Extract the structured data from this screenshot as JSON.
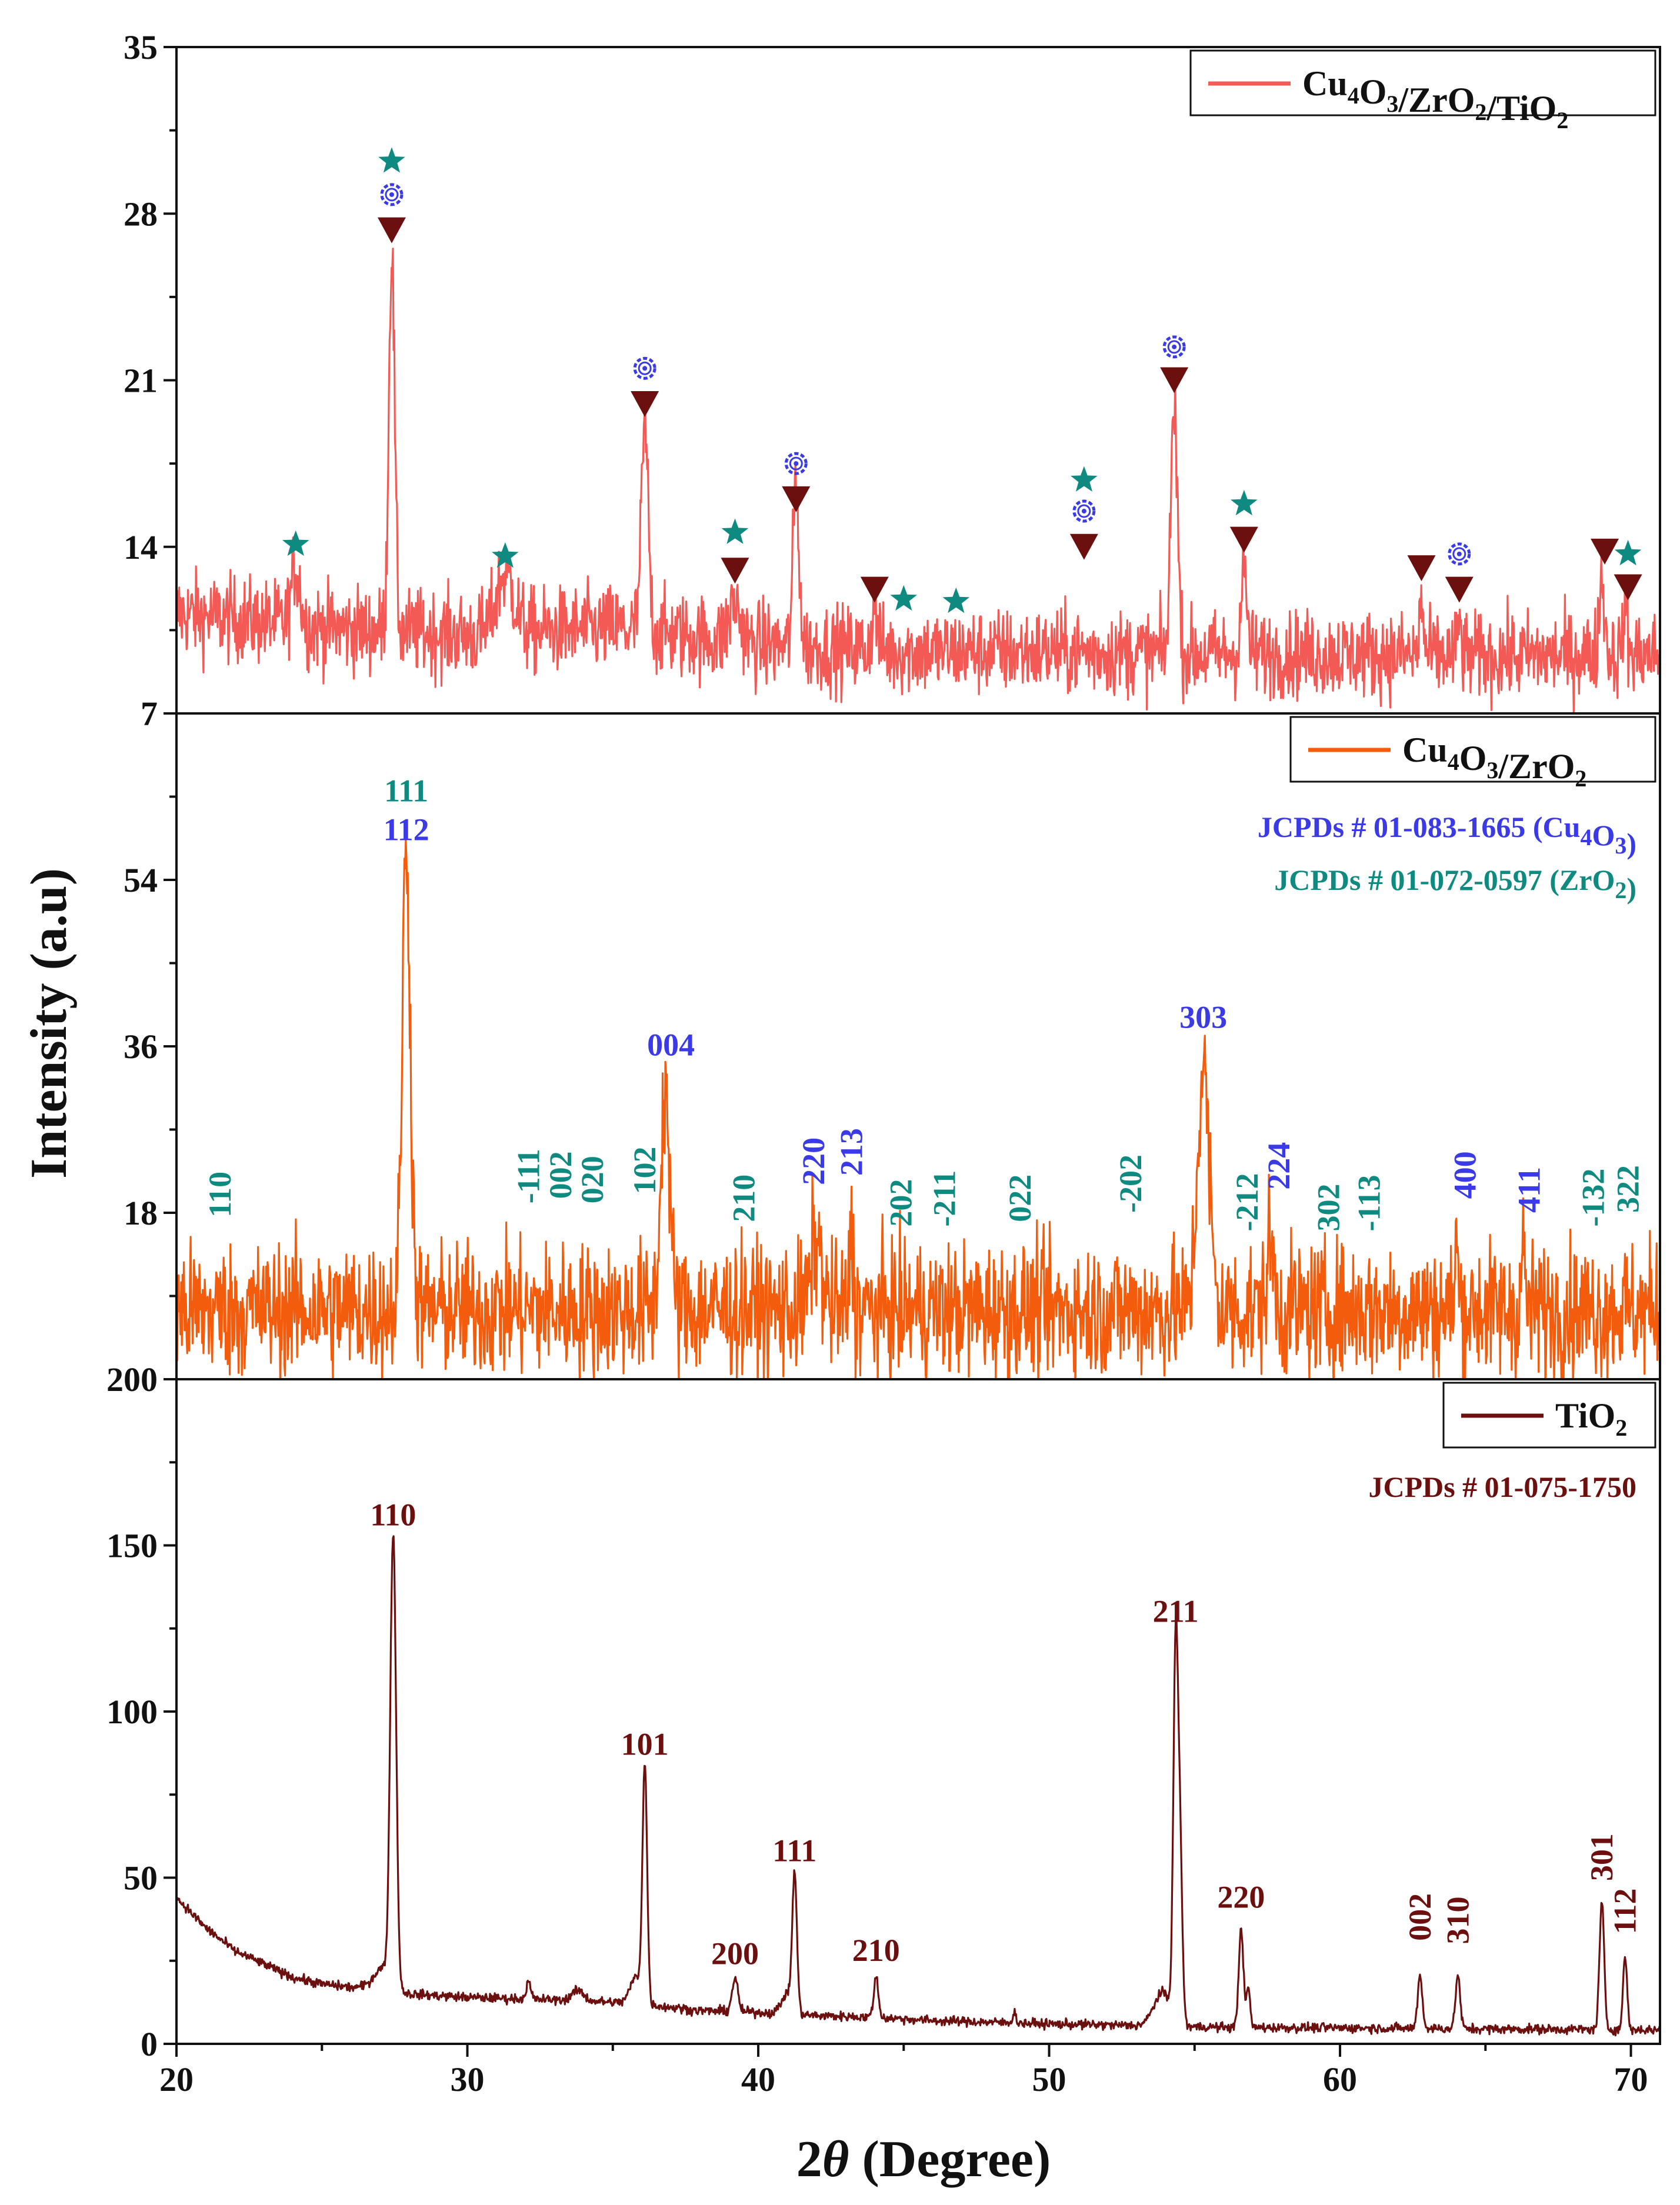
{
  "chart_data": {
    "type": "line",
    "title": "",
    "xlabel_prefix": "2",
    "xlabel_theta": "θ",
    "xlabel_suffix": " (Degree)",
    "ylabel": "Intensity (a.u)",
    "xlim": [
      20,
      71
    ],
    "x_ticks": [
      20,
      30,
      40,
      50,
      60,
      70
    ],
    "colors": {
      "composite": "#f35a55",
      "binary": "#f25c0c",
      "tio2": "#6b0f0f",
      "cu4o3_marker": "#3a3ae6",
      "zro2_marker": "#0f8a80",
      "tio2_marker": "#6b0f0f"
    },
    "panels": [
      {
        "id": "composite",
        "legend": {
          "main": "Cu",
          "s1": "4",
          "m2": "O",
          "s2": "3",
          "m3": "/ZrO",
          "s3": "2",
          "m4": "/TiO",
          "s4": "2"
        },
        "ylim": [
          7,
          35
        ],
        "y_ticks": [
          7,
          14,
          21,
          28,
          35
        ],
        "series": {
          "baseline": 10.4,
          "noise": 0.9,
          "background": [
            [
              20,
              11.2
            ],
            [
              25,
              10.6
            ],
            [
              30,
              10.3
            ],
            [
              35,
              10.6
            ],
            [
              40,
              9.9
            ],
            [
              45,
              9.6
            ],
            [
              50,
              9.6
            ],
            [
              55,
              9.5
            ],
            [
              60,
              9.5
            ],
            [
              65,
              9.4
            ],
            [
              71,
              9.5
            ]
          ],
          "peaks": [
            [
              24.1,
              2.5,
              0.15
            ],
            [
              27.4,
              16.0,
              0.1
            ],
            [
              31.3,
              2.5,
              0.3
            ],
            [
              36.1,
              8.5,
              0.12
            ],
            [
              39.2,
              1.6,
              0.2
            ],
            [
              41.3,
              7.0,
              0.1
            ],
            [
              44.0,
              1.8,
              0.1
            ],
            [
              54.3,
              11.0,
              0.11
            ],
            [
              56.7,
              3.5,
              0.1
            ],
            [
              62.8,
              2.5,
              0.06
            ],
            [
              64.1,
              1.5,
              0.06
            ],
            [
              69.0,
              3.3,
              0.09
            ],
            [
              69.8,
              2.0,
              0.07
            ]
          ]
        },
        "markers": [
          {
            "x": 24.1,
            "y": 14.1,
            "kind": "star"
          },
          {
            "x": 27.4,
            "y": 27.3,
            "kind": "triangle"
          },
          {
            "x": 27.4,
            "y": 28.8,
            "kind": "cog"
          },
          {
            "x": 27.4,
            "y": 30.2,
            "kind": "star"
          },
          {
            "x": 31.3,
            "y": 13.6,
            "kind": "star"
          },
          {
            "x": 36.1,
            "y": 20.0,
            "kind": "triangle"
          },
          {
            "x": 36.1,
            "y": 21.5,
            "kind": "cog"
          },
          {
            "x": 39.2,
            "y": 13.0,
            "kind": "triangle"
          },
          {
            "x": 39.2,
            "y": 14.6,
            "kind": "star"
          },
          {
            "x": 41.3,
            "y": 16.0,
            "kind": "triangle"
          },
          {
            "x": 41.3,
            "y": 17.5,
            "kind": "cog"
          },
          {
            "x": 44.0,
            "y": 12.2,
            "kind": "triangle"
          },
          {
            "x": 45.0,
            "y": 11.8,
            "kind": "star"
          },
          {
            "x": 46.8,
            "y": 11.7,
            "kind": "star"
          },
          {
            "x": 51.2,
            "y": 14.0,
            "kind": "triangle"
          },
          {
            "x": 51.2,
            "y": 15.5,
            "kind": "cog"
          },
          {
            "x": 51.2,
            "y": 16.8,
            "kind": "star"
          },
          {
            "x": 54.3,
            "y": 21.0,
            "kind": "triangle"
          },
          {
            "x": 54.3,
            "y": 22.4,
            "kind": "cog"
          },
          {
            "x": 56.7,
            "y": 14.3,
            "kind": "triangle"
          },
          {
            "x": 56.7,
            "y": 15.8,
            "kind": "star"
          },
          {
            "x": 62.8,
            "y": 13.1,
            "kind": "triangle"
          },
          {
            "x": 64.1,
            "y": 12.2,
            "kind": "triangle"
          },
          {
            "x": 64.1,
            "y": 13.7,
            "kind": "cog"
          },
          {
            "x": 69.1,
            "y": 13.8,
            "kind": "triangle"
          },
          {
            "x": 69.9,
            "y": 12.3,
            "kind": "triangle"
          },
          {
            "x": 69.9,
            "y": 13.7,
            "kind": "star"
          }
        ]
      },
      {
        "id": "binary",
        "legend": {
          "main": "Cu",
          "s1": "4",
          "m2": "O",
          "s2": "3",
          "m3": "/ZrO",
          "s3": "2",
          "m4": "",
          "s4": ""
        },
        "ylim": [
          0,
          72
        ],
        "y_ticks": [
          18,
          36,
          54
        ],
        "jcpds": [
          {
            "text": "JCPDs # 01-083-1665 (Cu",
            "sub": "4",
            "text2": "O",
            "sub2": "3",
            "text3": ")",
            "color": "#3a3ae6"
          },
          {
            "text": "JCPDs # 01-072-0597 (ZrO",
            "sub": "2",
            "text2": ")",
            "sub2": "",
            "text3": "",
            "color": "#0f8a80"
          }
        ],
        "series": {
          "baseline": 7.5,
          "noise": 3.6,
          "background": [
            [
              20,
              7.5
            ],
            [
              71,
              7.5
            ]
          ],
          "peaks": [
            [
              27.9,
              50.0,
              0.14
            ],
            [
              36.8,
              24.0,
              0.15
            ],
            [
              42.0,
              7.5,
              0.18
            ],
            [
              43.2,
              9.0,
              0.06
            ],
            [
              55.3,
              26.0,
              0.2
            ],
            [
              57.6,
              7.0,
              0.12
            ],
            [
              64.0,
              7.0,
              0.06
            ],
            [
              66.3,
              7.0,
              0.06
            ]
          ]
        },
        "labels": [
          {
            "x": 27.9,
            "y": 62.5,
            "text": "111",
            "rot": 0,
            "color": "#0f8a80"
          },
          {
            "x": 27.9,
            "y": 58.3,
            "text": "112",
            "rot": 0,
            "color": "#3a3ae6"
          },
          {
            "x": 21.5,
            "y": 17.5,
            "text": "110",
            "rot": -90,
            "color": "#0f8a80"
          },
          {
            "x": 32.1,
            "y": 19.0,
            "text": "-111",
            "rot": -90,
            "color": "#0f8a80"
          },
          {
            "x": 33.2,
            "y": 19.5,
            "text": "002",
            "rot": -90,
            "color": "#0f8a80"
          },
          {
            "x": 34.3,
            "y": 19.0,
            "text": "020",
            "rot": -90,
            "color": "#0f8a80"
          },
          {
            "x": 36.1,
            "y": 20.0,
            "text": "102",
            "rot": -90,
            "color": "#0f8a80"
          },
          {
            "x": 37.0,
            "y": 35.0,
            "text": "004",
            "rot": 0,
            "color": "#3a3ae6"
          },
          {
            "x": 39.5,
            "y": 17.0,
            "text": "210",
            "rot": -90,
            "color": "#0f8a80"
          },
          {
            "x": 41.9,
            "y": 21.0,
            "text": "220",
            "rot": -90,
            "color": "#3a3ae6"
          },
          {
            "x": 43.2,
            "y": 22.0,
            "text": "213",
            "rot": -90,
            "color": "#3a3ae6"
          },
          {
            "x": 44.9,
            "y": 16.5,
            "text": "202",
            "rot": -90,
            "color": "#0f8a80"
          },
          {
            "x": 46.4,
            "y": 16.5,
            "text": "-211",
            "rot": -90,
            "color": "#0f8a80"
          },
          {
            "x": 49.0,
            "y": 17.0,
            "text": "022",
            "rot": -90,
            "color": "#0f8a80"
          },
          {
            "x": 52.8,
            "y": 18.0,
            "text": "-202",
            "rot": -90,
            "color": "#0f8a80"
          },
          {
            "x": 55.3,
            "y": 38.0,
            "text": "303",
            "rot": 0,
            "color": "#3a3ae6"
          },
          {
            "x": 56.8,
            "y": 16.0,
            "text": "-212",
            "rot": -90,
            "color": "#0f8a80"
          },
          {
            "x": 57.9,
            "y": 20.5,
            "text": "224",
            "rot": -90,
            "color": "#3a3ae6"
          },
          {
            "x": 59.6,
            "y": 16.0,
            "text": "302",
            "rot": -90,
            "color": "#0f8a80"
          },
          {
            "x": 61.0,
            "y": 16.0,
            "text": "-113",
            "rot": -90,
            "color": "#0f8a80"
          },
          {
            "x": 64.3,
            "y": 19.5,
            "text": "400",
            "rot": -90,
            "color": "#3a3ae6"
          },
          {
            "x": 66.5,
            "y": 18.0,
            "text": "411",
            "rot": -90,
            "color": "#3a3ae6"
          },
          {
            "x": 68.7,
            "y": 16.5,
            "text": "-132",
            "rot": -90,
            "color": "#0f8a80"
          },
          {
            "x": 69.9,
            "y": 18.0,
            "text": "322",
            "rot": -90,
            "color": "#0f8a80"
          }
        ]
      },
      {
        "id": "tio2",
        "legend": {
          "main": "TiO",
          "s1": "2",
          "m2": "",
          "s2": "",
          "m3": "",
          "s3": "",
          "m4": "",
          "s4": ""
        },
        "ylim": [
          0,
          200
        ],
        "y_ticks": [
          0,
          50,
          100,
          150,
          200
        ],
        "jcpds": [
          {
            "text": "JCPDs # 01-075-1750",
            "sub": "",
            "text2": "",
            "sub2": "",
            "text3": "",
            "color": "#6b0f0f"
          }
        ],
        "series": {
          "baseline": 4.5,
          "noise": 0.7,
          "background": [
            [
              20,
              44
            ],
            [
              21,
              35
            ],
            [
              22,
              28
            ],
            [
              23,
              24
            ],
            [
              24,
              20
            ],
            [
              25,
              18
            ],
            [
              26,
              17
            ],
            [
              27,
              17
            ],
            [
              28,
              15
            ],
            [
              30,
              14
            ],
            [
              32,
              13.5
            ],
            [
              34,
              13
            ],
            [
              36,
              12
            ],
            [
              38,
              10
            ],
            [
              40,
              9.5
            ],
            [
              42,
              8.5
            ],
            [
              44,
              8
            ],
            [
              46,
              7
            ],
            [
              48,
              6.5
            ],
            [
              50,
              6
            ],
            [
              53,
              5.5
            ],
            [
              56,
              5
            ],
            [
              60,
              4.8
            ],
            [
              65,
              4.5
            ],
            [
              71,
              4.2
            ]
          ],
          "peaks": [
            [
              27.1,
              6,
              0.3
            ],
            [
              27.45,
              135,
              0.1
            ],
            [
              32.1,
              5,
              0.08
            ],
            [
              33.8,
              3,
              0.2
            ],
            [
              35.8,
              8,
              0.2
            ],
            [
              36.1,
              70,
              0.08
            ],
            [
              39.2,
              10,
              0.1
            ],
            [
              41.0,
              6,
              0.2
            ],
            [
              41.25,
              40,
              0.08
            ],
            [
              44.05,
              12,
              0.08
            ],
            [
              48.8,
              3,
              0.06
            ],
            [
              53.9,
              10,
              0.3
            ],
            [
              54.35,
              110,
              0.08
            ],
            [
              54.5,
              50,
              0.08
            ],
            [
              56.6,
              30,
              0.08
            ],
            [
              56.85,
              12,
              0.06
            ],
            [
              62.75,
              16,
              0.08
            ],
            [
              64.05,
              16,
              0.08
            ],
            [
              69.0,
              38,
              0.08
            ],
            [
              69.8,
              22,
              0.07
            ]
          ]
        },
        "labels": [
          {
            "x": 27.45,
            "y": 156,
            "text": "110",
            "rot": 0,
            "color": "#6b0f0f"
          },
          {
            "x": 36.1,
            "y": 87,
            "text": "101",
            "rot": 0,
            "color": "#6b0f0f"
          },
          {
            "x": 39.2,
            "y": 24,
            "text": "200",
            "rot": 0,
            "color": "#6b0f0f"
          },
          {
            "x": 41.25,
            "y": 55,
            "text": "111",
            "rot": 0,
            "color": "#6b0f0f"
          },
          {
            "x": 44.05,
            "y": 25,
            "text": "210",
            "rot": 0,
            "color": "#6b0f0f"
          },
          {
            "x": 54.35,
            "y": 127,
            "text": "211",
            "rot": 0,
            "color": "#6b0f0f"
          },
          {
            "x": 56.6,
            "y": 41,
            "text": "220",
            "rot": 0,
            "color": "#6b0f0f"
          },
          {
            "x": 62.75,
            "y": 31,
            "text": "002",
            "rot": -90,
            "color": "#6b0f0f"
          },
          {
            "x": 64.05,
            "y": 30,
            "text": "310",
            "rot": -90,
            "color": "#6b0f0f"
          },
          {
            "x": 69.0,
            "y": 49,
            "text": "301",
            "rot": -90,
            "color": "#6b0f0f"
          },
          {
            "x": 69.8,
            "y": 33,
            "text": "112",
            "rot": -90,
            "color": "#6b0f0f"
          }
        ]
      }
    ]
  }
}
